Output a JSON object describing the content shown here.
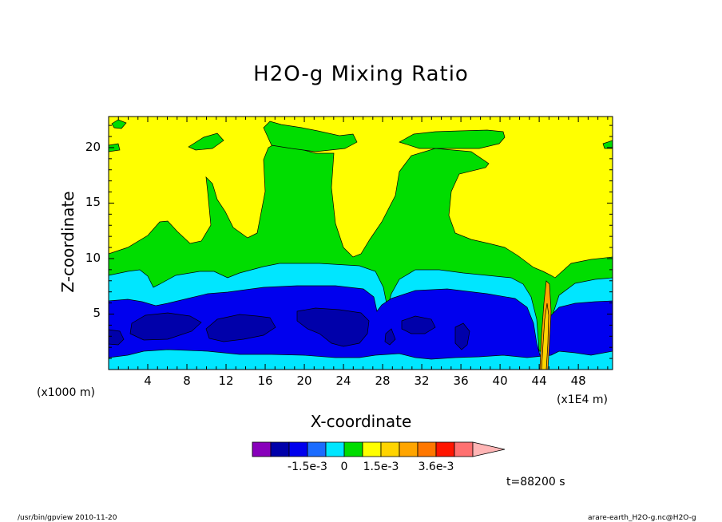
{
  "chart_data": {
    "type": "heatmap",
    "title": "H2O-g Mixing Ratio",
    "xlabel": "X-coordinate",
    "ylabel": "Z-coordinate",
    "x_unit_left": "(x1000 m)",
    "x_unit_right": "(x1E4 m)",
    "xlim": [
      0,
      51.5
    ],
    "ylim": [
      0,
      22.8
    ],
    "xticks": [
      "4",
      "8",
      "12",
      "16",
      "20",
      "24",
      "28",
      "32",
      "36",
      "40",
      "44",
      "48"
    ],
    "yticks": [
      "5",
      "10",
      "15",
      "20"
    ],
    "colorbar": {
      "colors": [
        "#8800bb",
        "#0000aa",
        "#0000ee",
        "#1b6cff",
        "#00e6ff",
        "#00dd00",
        "#ffff00",
        "#ffd400",
        "#ffa500",
        "#ff7700",
        "#ff1500",
        "#ff7070",
        "#ffb5b5"
      ],
      "tick_labels": [
        "-1.5e-3",
        "0",
        "1.5e-3",
        "3.6e-3"
      ]
    },
    "time_label": "t=88200 s",
    "footer_left": "/usr/bin/gpview  2010-11-20",
    "footer_right": "arare-earth_H2O-g.nc@H2O-g"
  }
}
